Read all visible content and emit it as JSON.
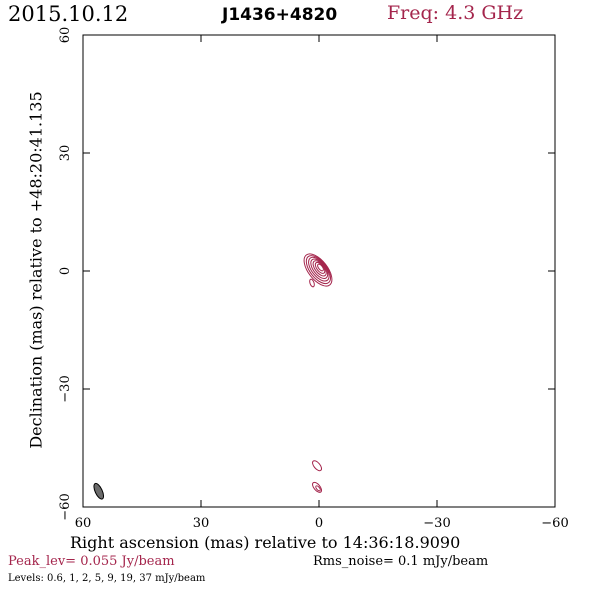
{
  "header": {
    "date": "2015.10.12",
    "source": "J1436+4820",
    "freq": "Freq: 4.3 GHz"
  },
  "chart_data": {
    "type": "contour",
    "xlabel": "Right ascension (mas) relative to 14:36:18.9090",
    "ylabel": "Declination (mas) relative to +48:20:41.135",
    "xlim": [
      60,
      -60
    ],
    "ylim": [
      -60,
      60
    ],
    "xticks": [
      60,
      30,
      0,
      -30,
      -60
    ],
    "yticks": [
      60,
      30,
      0,
      -30,
      -60
    ],
    "contour_color": "#a4254c",
    "core": {
      "x": 0,
      "y": 0,
      "levels": 7
    },
    "components": [
      {
        "x": 0.5,
        "y": -49.5
      },
      {
        "x": 0.5,
        "y": -55
      }
    ],
    "beam": {
      "x": 56,
      "y": -56
    },
    "peak_text": "Peak_lev=  0.055 Jy/beam",
    "rms_text": "Rms_noise=   0.1 mJy/beam",
    "levels_text": "Levels: 0.6,    1,    2,    5,    9,   19,   37 mJy/beam"
  }
}
